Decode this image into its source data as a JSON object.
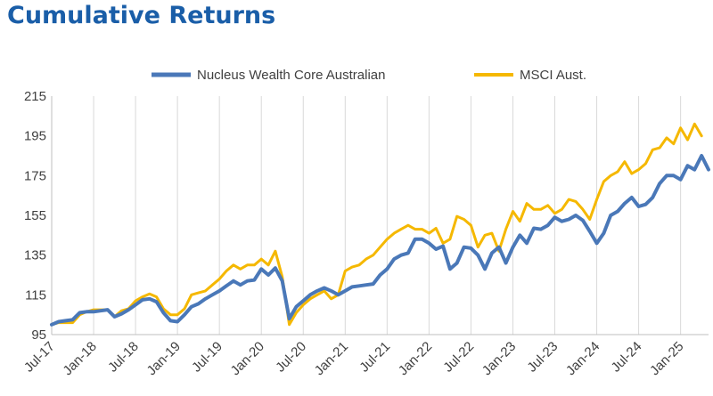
{
  "chart_data": {
    "type": "line",
    "title": "Cumulative Returns",
    "xlabel": "",
    "ylabel": "",
    "ylim": [
      95,
      215
    ],
    "yticks": [
      95,
      115,
      135,
      155,
      175,
      195,
      215
    ],
    "x_tick_labels": [
      "Jul-17",
      "Jan-18",
      "Jul-18",
      "Jan-19",
      "Jul-19",
      "Jan-20",
      "Jul-20",
      "Jan-21",
      "Jul-21",
      "Jan-22",
      "Jul-22",
      "Jan-23",
      "Jul-23",
      "Jan-24",
      "Jul-24",
      "Jan-25"
    ],
    "grid": "vertical",
    "legend_position": "top",
    "colors": {
      "core": "#4a78b8",
      "msci": "#f5b800",
      "title": "#1a5ea8",
      "grid": "#d9d9d9"
    },
    "series": [
      {
        "name": "Nucleus Wealth Core Australian",
        "values": [
          100,
          101.5,
          102,
          102.5,
          106,
          106.5,
          106.5,
          107,
          107.5,
          104,
          105.5,
          107.5,
          110,
          112.5,
          113,
          111.5,
          106,
          102,
          101.5,
          105,
          109,
          110.5,
          113,
          115,
          117,
          119.5,
          122,
          120,
          122,
          122.5,
          128,
          125,
          128.5,
          122,
          103,
          109,
          112,
          115,
          117,
          118.5,
          117,
          115,
          117,
          119,
          119.5,
          120,
          120.5,
          125,
          128,
          133,
          135,
          136,
          143,
          143,
          141,
          138,
          139.5,
          128,
          131,
          139,
          138.5,
          135,
          128,
          136,
          139,
          131,
          139,
          145,
          141,
          148.5,
          148,
          150,
          154,
          152,
          153,
          155,
          152.5,
          147,
          141,
          146,
          155,
          157,
          161,
          164,
          159.5,
          160.5,
          164,
          171,
          175,
          175,
          173,
          180,
          178,
          185,
          178
        ]
      },
      {
        "name": "MSCI Aust.",
        "values": [
          100,
          101,
          101,
          101,
          105,
          106.5,
          107.5,
          107.5,
          107.5,
          104,
          107,
          108,
          112,
          114,
          115.5,
          114,
          108,
          105,
          105,
          108,
          115,
          116,
          117,
          120,
          123,
          127,
          130,
          128,
          130,
          130,
          133,
          130,
          137,
          124,
          100,
          106,
          110,
          113,
          115,
          117,
          113,
          115,
          127,
          129,
          130,
          133,
          135,
          139,
          143,
          146,
          148,
          150,
          148,
          148,
          146,
          148.5,
          141,
          143,
          154.5,
          153,
          150,
          139,
          145,
          146,
          137,
          148,
          157,
          152,
          161,
          158,
          158,
          160,
          156,
          158,
          163,
          162,
          158,
          153,
          163,
          172,
          175,
          177,
          182,
          176,
          178,
          181,
          188,
          189,
          194,
          191,
          199,
          193,
          201,
          195
        ]
      }
    ]
  }
}
